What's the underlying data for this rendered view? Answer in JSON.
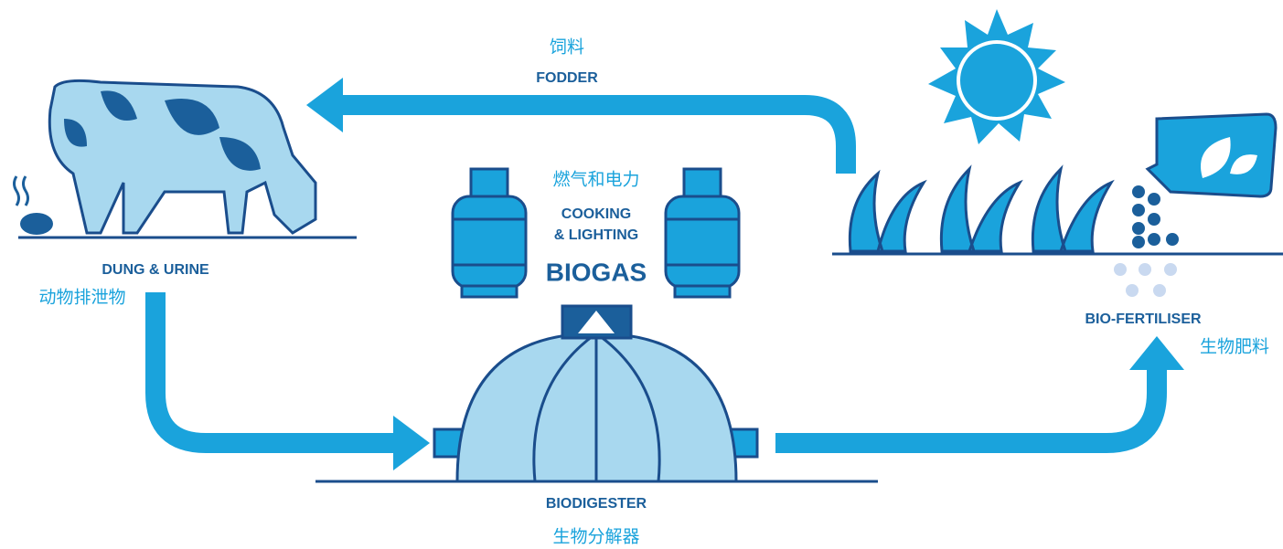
{
  "fodder": {
    "zh": "饲料",
    "en": "FODDER"
  },
  "energy": {
    "zh": "燃气和电力",
    "en_lines": [
      "COOKING",
      "& LIGHTING"
    ],
    "product": "BIOGAS"
  },
  "animal": {
    "en": "DUNG & URINE",
    "zh": "动物排泄物"
  },
  "fertiliser": {
    "en": "BIO-FERTILISER",
    "zh": "生物肥料"
  },
  "digester": {
    "en": "BIODIGESTER",
    "zh": "生物分解器"
  }
}
